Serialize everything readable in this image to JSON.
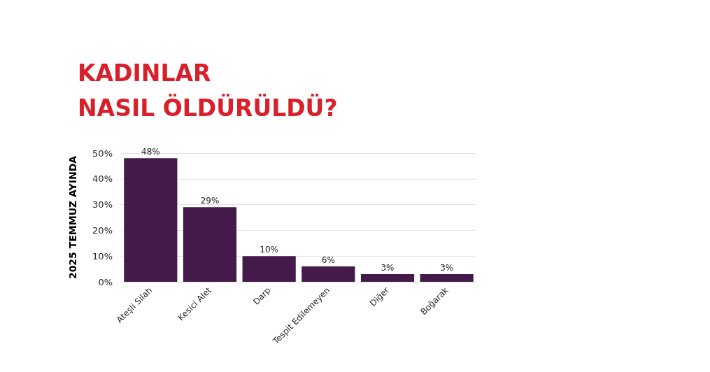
{
  "chart_data": {
    "type": "bar",
    "title": "KADINLAR\nNASIL ÖLDÜRÜLDÜ?",
    "ylabel": "2025 TEMMUZ AYINDA",
    "categories": [
      "Ateşli Silah",
      "Kesici Alet",
      "Darp",
      "Tespit Edilemeyen",
      "Diğer",
      "Boğarak"
    ],
    "values": [
      48,
      29,
      10,
      6,
      3,
      3
    ],
    "value_labels": [
      "48%",
      "29%",
      "10%",
      "6%",
      "3%",
      "3%"
    ],
    "color": "#441a4a",
    "ylim": [
      0,
      50
    ],
    "yticks": [
      {
        "value": 0,
        "label": "0%"
      },
      {
        "value": 10,
        "label": "10%"
      },
      {
        "value": 20,
        "label": "20%"
      },
      {
        "value": 30,
        "label": "30%"
      },
      {
        "value": 40,
        "label": "40%"
      },
      {
        "value": 50,
        "label": "50%"
      }
    ],
    "grid": "y"
  }
}
